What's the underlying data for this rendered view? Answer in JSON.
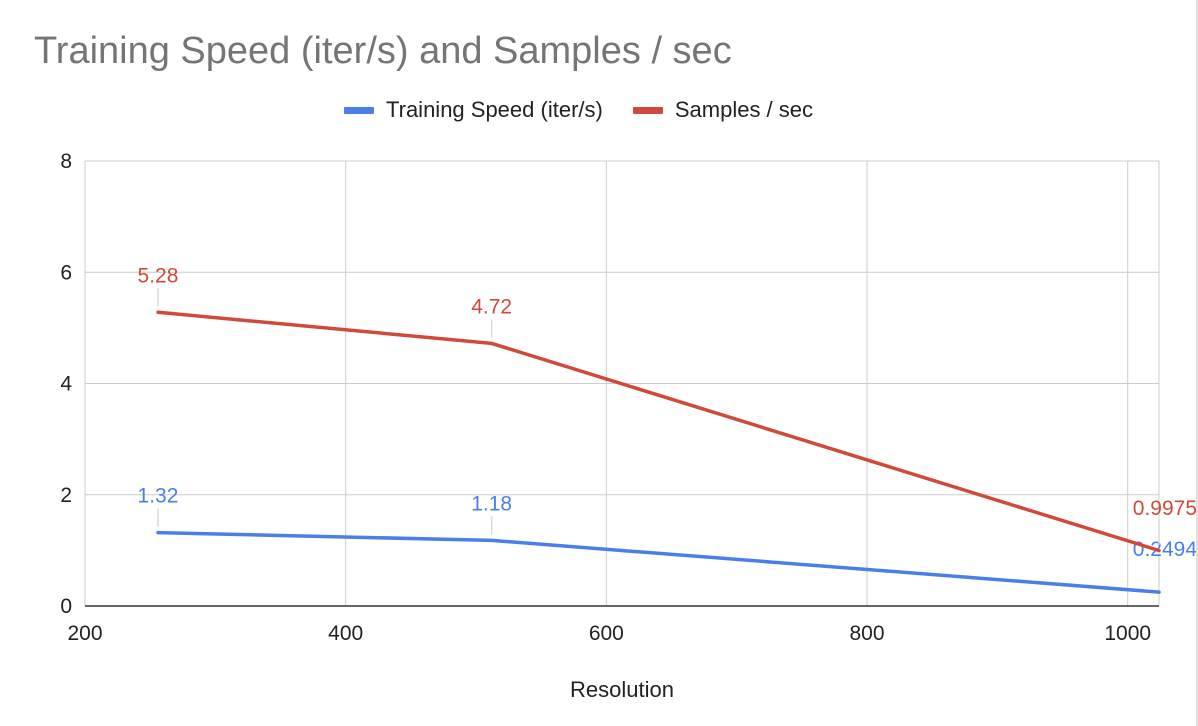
{
  "chart_data": {
    "type": "line",
    "title": "Training Speed (iter/s) and Samples / sec",
    "xlabel": "Resolution",
    "ylabel": "",
    "xlim": [
      200,
      1024
    ],
    "ylim": [
      0,
      8
    ],
    "x_ticks": [
      200,
      400,
      600,
      800,
      1000
    ],
    "y_ticks": [
      0,
      2,
      4,
      6,
      8
    ],
    "grid": true,
    "legend_position": "top",
    "x": [
      256,
      512,
      1024
    ],
    "series": [
      {
        "name": "Training Speed (iter/s)",
        "color": "#4a7fea",
        "values": [
          1.32,
          1.18,
          0.2494
        ],
        "labels": [
          "1.32",
          "1.18",
          "0.2494"
        ]
      },
      {
        "name": "Samples / sec",
        "color": "#d04a3b",
        "values": [
          5.28,
          4.72,
          0.9975
        ],
        "labels": [
          "5.28",
          "4.72",
          "0.9975"
        ]
      }
    ]
  }
}
